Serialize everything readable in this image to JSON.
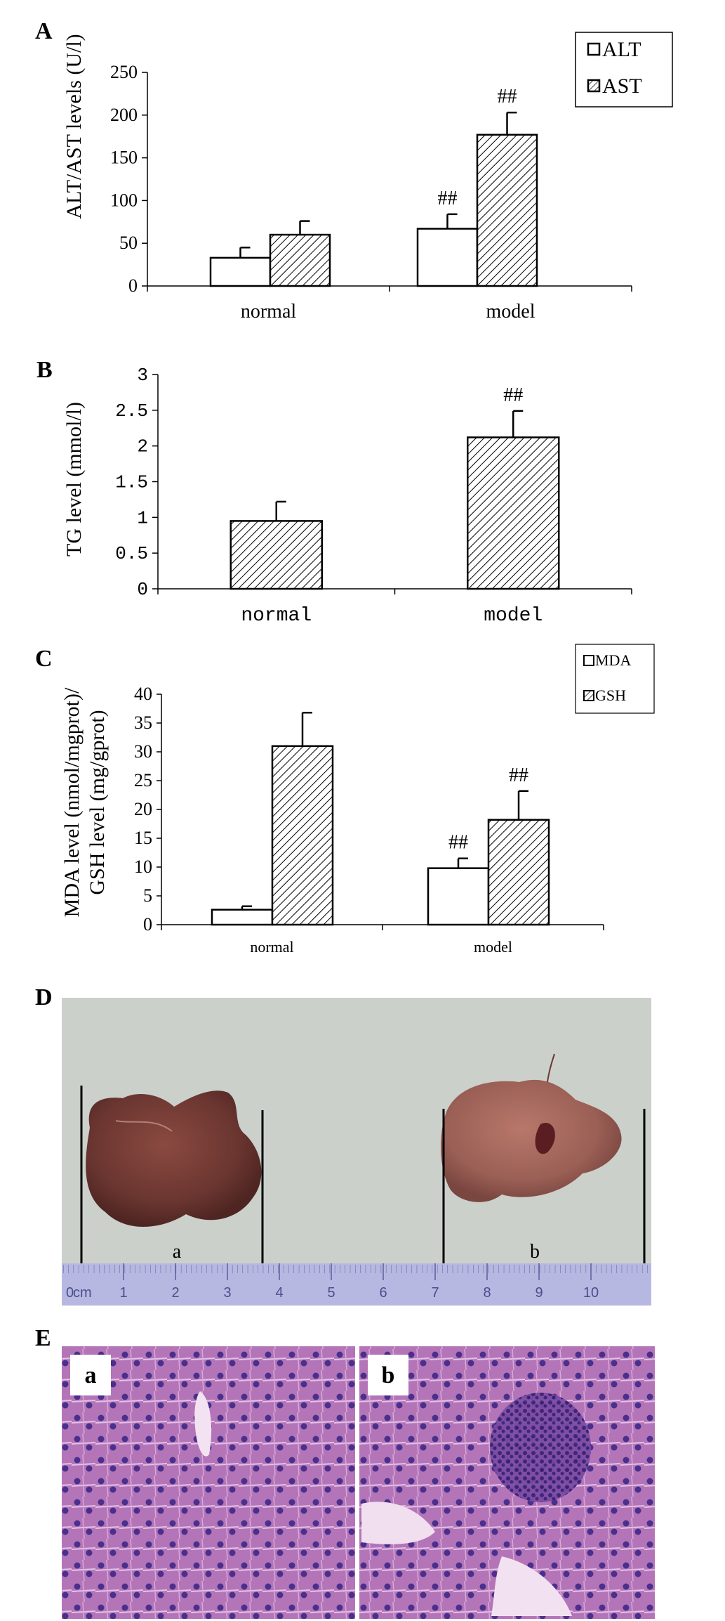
{
  "chart_data": [
    {
      "panel": "A",
      "type": "bar",
      "categories": [
        "normal",
        "model"
      ],
      "series": [
        {
          "name": "ALT",
          "pattern": "white",
          "values": [
            33,
            67
          ],
          "errors": [
            12,
            17
          ],
          "sig": [
            "",
            "##"
          ]
        },
        {
          "name": "AST",
          "pattern": "hatch",
          "values": [
            60,
            177
          ],
          "errors": [
            16,
            26
          ],
          "sig": [
            "",
            "##"
          ]
        }
      ],
      "ylabel": "ALT/AST levels (U/l)",
      "ylim": [
        0,
        250
      ],
      "yticks": [
        "0",
        "50",
        "100",
        "150",
        "200",
        "250"
      ],
      "legend": "top-right"
    },
    {
      "panel": "B",
      "type": "bar",
      "categories": [
        "normal",
        "model"
      ],
      "series": [
        {
          "pattern": "hatch",
          "values": [
            0.95,
            2.12
          ],
          "errors": [
            0.27,
            0.37
          ],
          "sig": [
            "",
            "##"
          ]
        }
      ],
      "ylabel": "TG level (mmol/l)",
      "ylim": [
        0,
        3
      ],
      "yticks": [
        "0",
        "0.5",
        "1",
        "1.5",
        "2",
        "2.5",
        "3"
      ]
    },
    {
      "panel": "C",
      "type": "bar",
      "categories": [
        "normal",
        "model"
      ],
      "series": [
        {
          "name": "MDA",
          "pattern": "white",
          "values": [
            2.6,
            9.8
          ],
          "errors": [
            0.6,
            1.7
          ],
          "sig": [
            "",
            "##"
          ]
        },
        {
          "name": "GSH",
          "pattern": "hatch",
          "values": [
            31,
            18.2
          ],
          "errors": [
            5.8,
            5.0
          ],
          "sig": [
            "",
            "##"
          ]
        }
      ],
      "ylabel_lines": [
        "MDA level (nmol/mgprot)/",
        "GSH level (mg/gprot)"
      ],
      "ylim": [
        0,
        40
      ],
      "yticks": [
        "0",
        "5",
        "10",
        "15",
        "20",
        "25",
        "30",
        "35",
        "40"
      ],
      "legend": "top-right"
    }
  ],
  "panel_d": {
    "letter": "D",
    "label_a": "a",
    "label_b": "b",
    "ruler_unit": "cm",
    "ruler_numbers": [
      "0",
      "1",
      "2",
      "3",
      "4",
      "5",
      "6",
      "7",
      "8",
      "9",
      "10"
    ]
  },
  "panel_e": {
    "letter": "E",
    "label_a": "a",
    "label_b": "b"
  },
  "colors": {
    "bar_fill_white": "#ffffff",
    "hatch": "#000000",
    "photo_background": "#c9cfc9",
    "liver": "#6e3a32",
    "ruler": "#b9b9e3",
    "tissue": "#b06bb6",
    "nuclei": "#4b2f8c"
  }
}
